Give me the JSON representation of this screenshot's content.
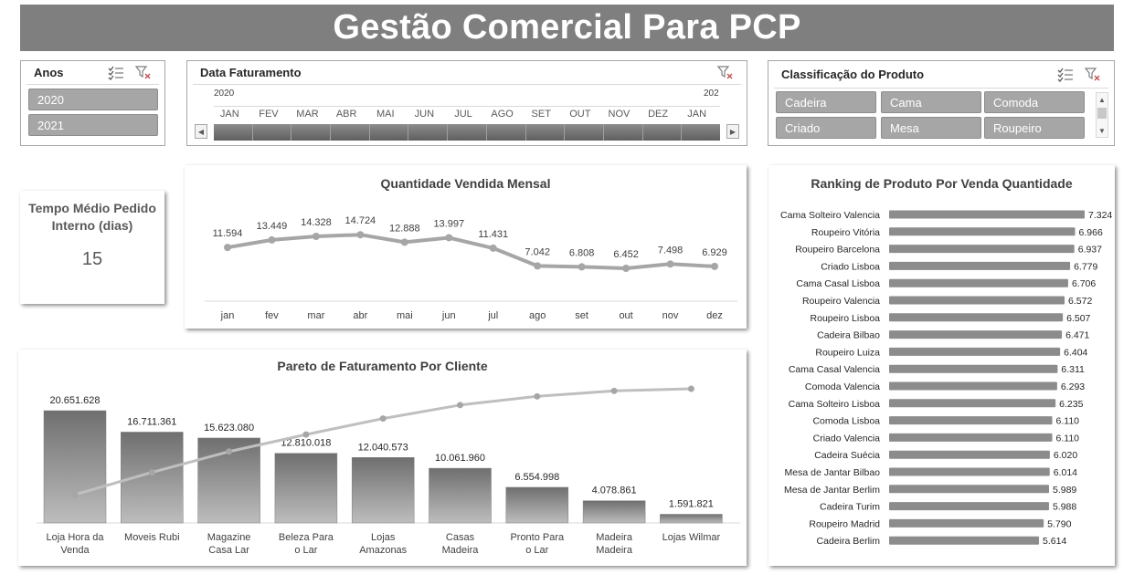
{
  "header": {
    "title": "Gestão Comercial Para PCP"
  },
  "slicer_anos": {
    "title": "Anos",
    "items": [
      "2020",
      "2021"
    ]
  },
  "slicer_data": {
    "title": "Data Faturamento",
    "year_start": "2020",
    "year_next": "202",
    "months": [
      "JAN",
      "FEV",
      "MAR",
      "ABR",
      "MAI",
      "JUN",
      "JUL",
      "AGO",
      "SET",
      "OUT",
      "NOV",
      "DEZ",
      "JAN"
    ]
  },
  "slicer_classificacao": {
    "title": "Classificação do Produto",
    "items": [
      "Cadeira",
      "Cama",
      "Comoda",
      "Criado",
      "Mesa",
      "Roupeiro"
    ]
  },
  "kpi": {
    "title": "Tempo Médio Pedido Interno (dias)",
    "value": "15"
  },
  "chart_data": [
    {
      "type": "line",
      "title": "Quantidade Vendida Mensal",
      "categories": [
        "jan",
        "fev",
        "mar",
        "abr",
        "mai",
        "jun",
        "jul",
        "ago",
        "set",
        "out",
        "nov",
        "dez"
      ],
      "values": [
        11594,
        13449,
        14328,
        14724,
        12888,
        13997,
        11431,
        7042,
        6808,
        6452,
        7498,
        6929
      ],
      "labels": [
        "11.594",
        "13.449",
        "14.328",
        "14.724",
        "12.888",
        "13.997",
        "11.431",
        "7.042",
        "6.808",
        "6.452",
        "7.498",
        "6.929"
      ],
      "color": "#a6a6a6"
    },
    {
      "type": "bar",
      "title": "Pareto de Faturamento Por Cliente",
      "categories": [
        "Loja Hora da Venda",
        "Moveis Rubi",
        "Magazine Casa Lar",
        "Beleza Para o Lar",
        "Lojas Amazonas",
        "Casas Madeira",
        "Pronto Para o Lar",
        "Madeira Madeira",
        "Lojas Wilmar"
      ],
      "values": [
        20651628,
        16711361,
        15623080,
        12810018,
        12040573,
        10061960,
        6554998,
        4078861,
        1591821
      ],
      "labels": [
        "20.651.628",
        "16.711.361",
        "15.623.080",
        "12.810.018",
        "12.040.573",
        "10.061.960",
        "6.554.998",
        "4.078.861",
        "1.591.821"
      ],
      "cumulative_percent": [
        20.6,
        37.3,
        52.9,
        65.7,
        77.7,
        87.8,
        94.3,
        98.4,
        100
      ],
      "bar_color": "#7f7f7f",
      "line_color": "#bfbfbf"
    },
    {
      "type": "bar",
      "orientation": "horizontal",
      "title": "Ranking de Produto Por Venda Quantidade",
      "categories": [
        "Cama Solteiro Valencia",
        "Roupeiro Vitória",
        "Roupeiro Barcelona",
        "Criado Lisboa",
        "Cama Casal Lisboa",
        "Roupeiro Valencia",
        "Roupeiro Lisboa",
        "Cadeira Bilbao",
        "Roupeiro Luiza",
        "Cama Casal Valencia",
        "Comoda Valencia",
        "Cama Solteiro Lisboa",
        "Comoda Lisboa",
        "Criado Valencia",
        "Cadeira Suécia",
        "Mesa de Jantar Bilbao",
        "Mesa de Jantar Berlim",
        "Cadeira Turim",
        "Roupeiro Madrid",
        "Cadeira Berlim"
      ],
      "values": [
        7324,
        6966,
        6937,
        6779,
        6706,
        6572,
        6507,
        6471,
        6404,
        6311,
        6293,
        6235,
        6110,
        6110,
        6020,
        6014,
        5989,
        5988,
        5790,
        5614
      ],
      "labels": [
        "7.324",
        "6.966",
        "6.937",
        "6.779",
        "6.706",
        "6.572",
        "6.507",
        "6.471",
        "6.404",
        "6.311",
        "6.293",
        "6.235",
        "6.110",
        "6.110",
        "6.020",
        "6.014",
        "5.989",
        "5.988",
        "5.790",
        "5.614"
      ],
      "bar_color": "#8c8c8c"
    }
  ]
}
